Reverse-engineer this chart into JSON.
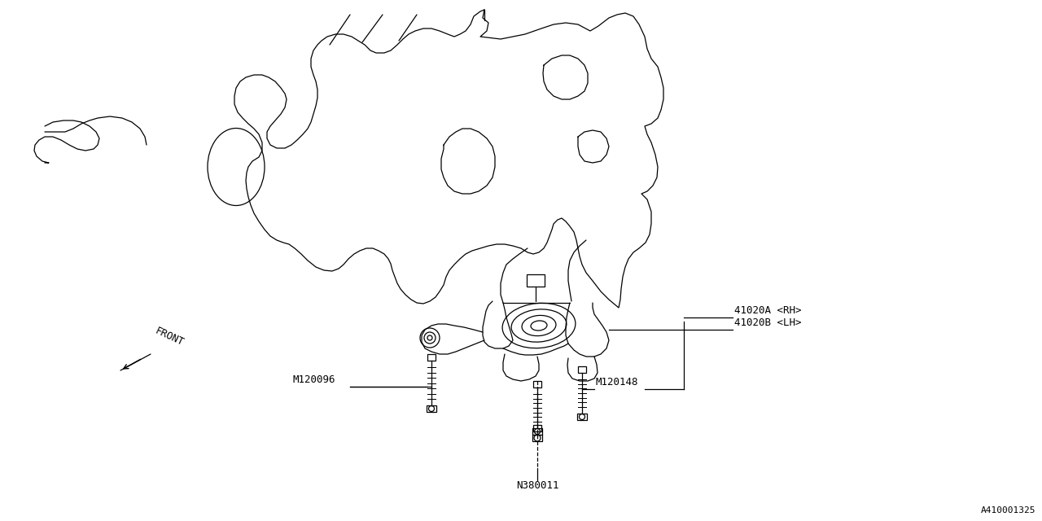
{
  "bg_color": "#ffffff",
  "line_color": "#000000",
  "diagram_id": "A410001325",
  "labels": {
    "part_41020A": "41020A <RH>",
    "part_41020B": "41020B <LH>",
    "part_M120096": "M120096",
    "part_M120148": "M120148",
    "part_N380011": "N380011"
  },
  "front_arrow_label": "FRONT"
}
